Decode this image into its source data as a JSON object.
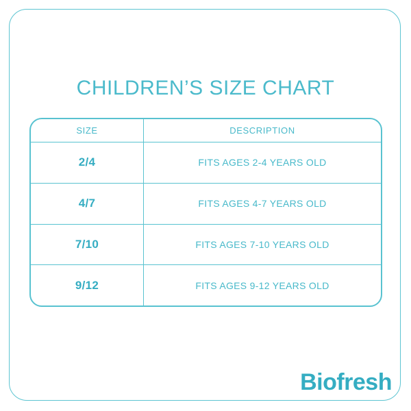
{
  "title": "CHILDREN’S SIZE CHART",
  "brand": "Biofresh",
  "table": {
    "columns": [
      "SIZE",
      "DESCRIPTION"
    ],
    "rows": [
      {
        "size": "2/4",
        "description": "FITS AGES 2-4 YEARS OLD"
      },
      {
        "size": "4/7",
        "description": "FITS AGES 4-7 YEARS OLD"
      },
      {
        "size": "7/10",
        "description": "FITS AGES 7-10 YEARS OLD"
      },
      {
        "size": "9/12",
        "description": "FITS AGES 9-12 YEARS OLD"
      }
    ]
  },
  "colors": {
    "accent_text": "#48b9ca",
    "accent_bold": "#35adc2",
    "border": "#58c2d0",
    "background": "#ffffff"
  }
}
